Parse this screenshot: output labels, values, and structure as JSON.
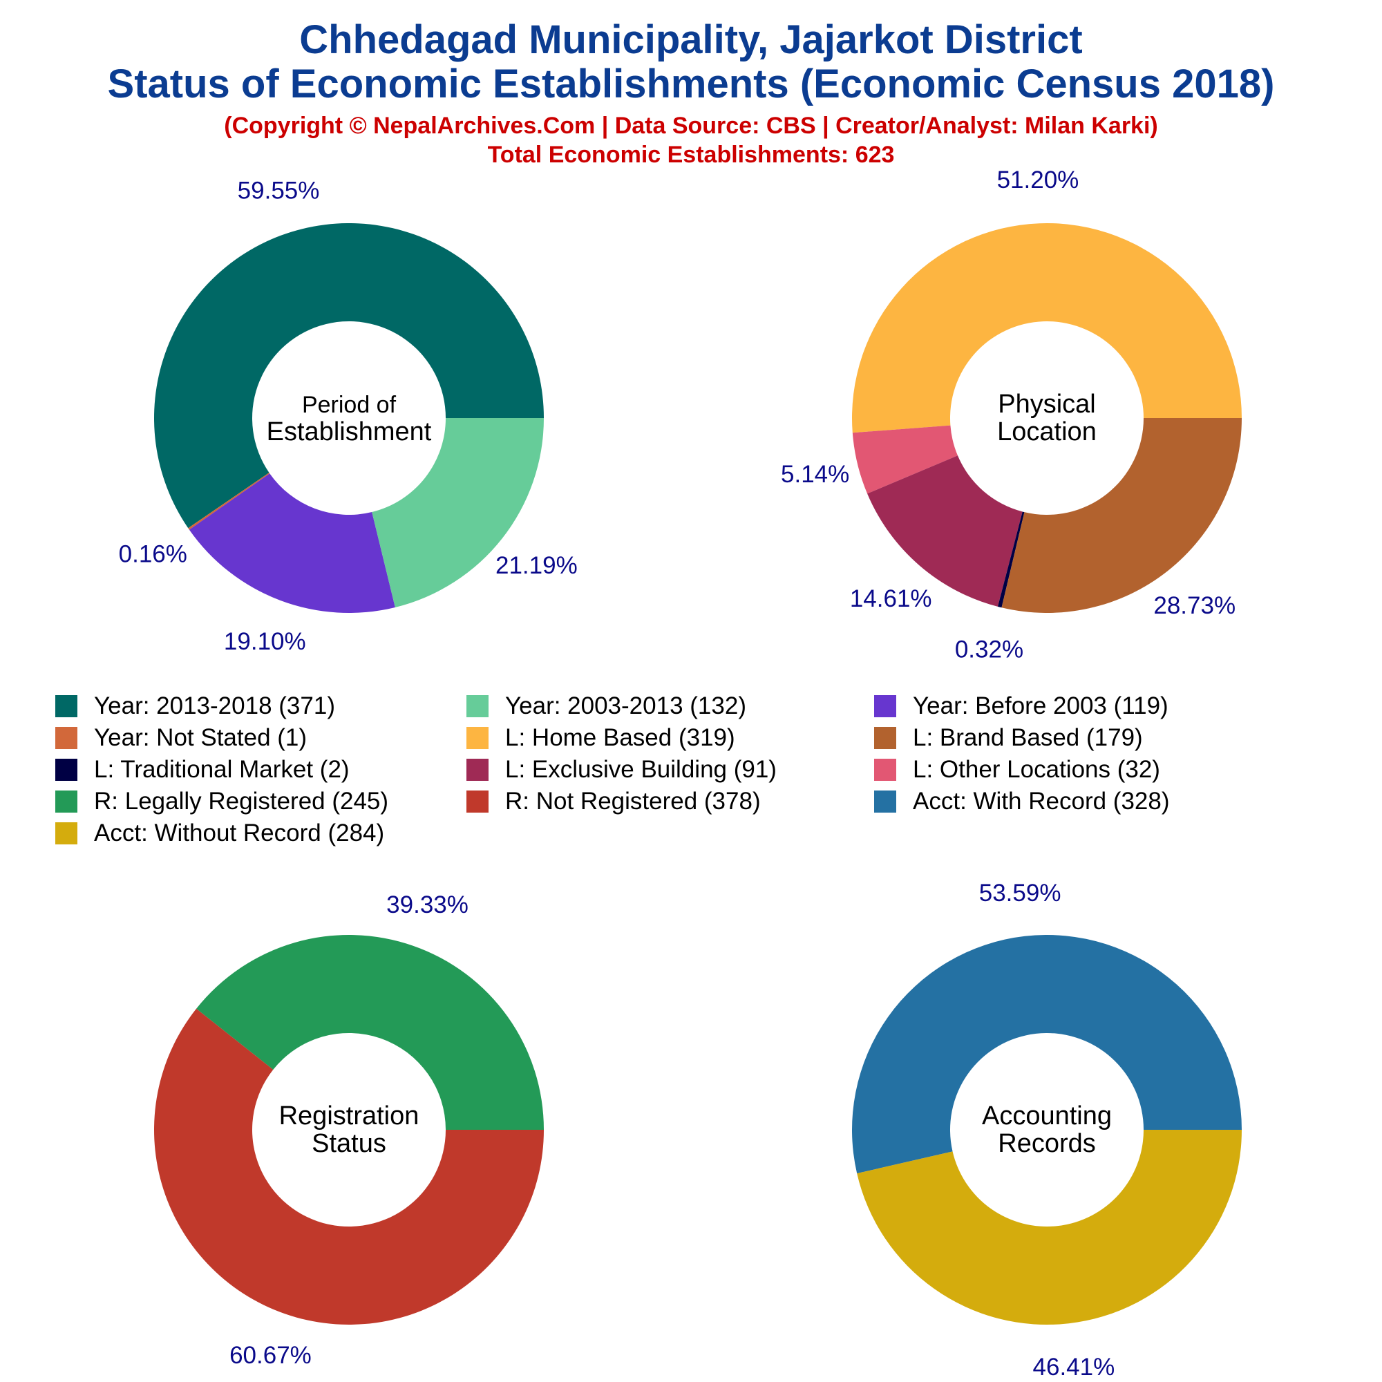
{
  "titles": {
    "line1": "Chhedagad Municipality, Jajarkot District",
    "line2": "Status of Economic Establishments (Economic Census 2018)",
    "line3": "(Copyright © NepalArchives.Com | Data Source: CBS | Creator/Analyst: Milan Karki)",
    "line4": "Total Economic Establishments: 623"
  },
  "colors": {
    "title": "#0b3c91",
    "subtitle": "#cc0000",
    "pct_label": "#0a0a8a"
  },
  "chart_data": [
    {
      "type": "pie",
      "donut": true,
      "center_label": [
        "Period of",
        "Establishment"
      ],
      "slices": [
        {
          "label": "Year: 2013-2018",
          "value": 371,
          "pct_label": "59.55%",
          "color": "#006865"
        },
        {
          "label": "Year: Not Stated",
          "value": 1,
          "pct_label": "0.16%",
          "color": "#d2683a"
        },
        {
          "label": "Year: Before 2003",
          "value": 119,
          "pct_label": "19.10%",
          "color": "#6736cf"
        },
        {
          "label": "Year: 2003-2013",
          "value": 132,
          "pct_label": "21.19%",
          "color": "#66cc99"
        }
      ]
    },
    {
      "type": "pie",
      "donut": true,
      "center_label": [
        "Physical",
        "Location"
      ],
      "slices": [
        {
          "label": "L: Home Based",
          "value": 319,
          "pct_label": "51.20%",
          "color": "#fdb541"
        },
        {
          "label": "L: Other Locations",
          "value": 32,
          "pct_label": "5.14%",
          "color": "#e25773"
        },
        {
          "label": "L: Exclusive Building",
          "value": 91,
          "pct_label": "14.61%",
          "color": "#9f2a55"
        },
        {
          "label": "L: Traditional Market",
          "value": 2,
          "pct_label": "0.32%",
          "color": "#000044"
        },
        {
          "label": "L: Brand Based",
          "value": 179,
          "pct_label": "28.73%",
          "color": "#b2622e"
        }
      ]
    },
    {
      "type": "pie",
      "donut": true,
      "center_label": [
        "Registration",
        "Status"
      ],
      "slices": [
        {
          "label": "R: Legally Registered",
          "value": 245,
          "pct_label": "39.33%",
          "color": "#239a57"
        },
        {
          "label": "R: Not Registered",
          "value": 378,
          "pct_label": "60.67%",
          "color": "#c0392b"
        }
      ]
    },
    {
      "type": "pie",
      "donut": true,
      "center_label": [
        "Accounting",
        "Records"
      ],
      "slices": [
        {
          "label": "Acct: With Record",
          "value": 328,
          "pct_label": "53.59%",
          "color": "#2471a3"
        },
        {
          "label": "Acct: Without Record",
          "value": 284,
          "pct_label": "46.41%",
          "color": "#d4ac0d"
        }
      ]
    }
  ],
  "legend": [
    {
      "label": "Year: 2013-2018 (371)",
      "color": "#006865"
    },
    {
      "label": "Year: 2003-2013 (132)",
      "color": "#66cc99"
    },
    {
      "label": "Year: Before 2003 (119)",
      "color": "#6736cf"
    },
    {
      "label": "Year: Not Stated (1)",
      "color": "#d2683a"
    },
    {
      "label": "L: Home Based (319)",
      "color": "#fdb541"
    },
    {
      "label": "L: Brand Based (179)",
      "color": "#b2622e"
    },
    {
      "label": "L: Traditional Market (2)",
      "color": "#000044"
    },
    {
      "label": "L: Exclusive Building (91)",
      "color": "#9f2a55"
    },
    {
      "label": "L: Other Locations (32)",
      "color": "#e25773"
    },
    {
      "label": "R: Legally Registered (245)",
      "color": "#239a57"
    },
    {
      "label": "R: Not Registered (378)",
      "color": "#c0392b"
    },
    {
      "label": "Acct: With Record (328)",
      "color": "#2471a3"
    },
    {
      "label": "Acct: Without Record (284)",
      "color": "#d4ac0d"
    }
  ]
}
